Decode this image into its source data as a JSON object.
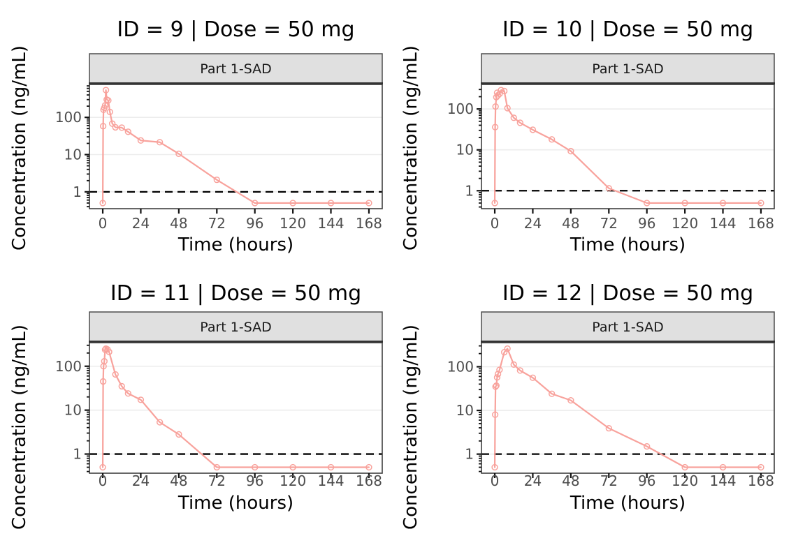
{
  "figure": {
    "x_axis_label": "Time (hours)",
    "y_axis_label": "Concentration (ng/mL)",
    "strip_label": "Part 1-SAD",
    "x_ticks": [
      0,
      24,
      48,
      72,
      96,
      120,
      144,
      168
    ],
    "y_ticks": [
      1,
      10,
      100
    ],
    "lloq": 1,
    "colors": {
      "background": "#ffffff",
      "series": "#f8a29c",
      "lloq_line": "#000000",
      "strip_fill": "#e0e0e0",
      "strip_border": "#4d4d4d",
      "panel_border": "#404040",
      "gridline": "#ececec",
      "tick": "#111111",
      "tick_label": "#4d4d4d",
      "strip_text": "#1a1a1a",
      "title_text": "#000000"
    }
  },
  "chart_data": [
    {
      "type": "line",
      "id": 9,
      "dose_mg": 50,
      "title": "ID = 9 | Dose = 50 mg",
      "strip": "Part 1-SAD",
      "xlabel": "Time (hours)",
      "ylabel": "Concentration (ng/mL)",
      "y_scale": "log10",
      "lloq": 1,
      "x_hours": [
        0,
        0.25,
        0.5,
        1,
        1.5,
        2,
        2.5,
        3.5,
        4.5,
        6,
        8,
        12,
        16,
        24,
        36,
        48,
        72,
        96,
        120,
        144,
        168
      ],
      "y_ng_ml": [
        0.5,
        58,
        160,
        180,
        210,
        540,
        300,
        285,
        140,
        68,
        54,
        53,
        41,
        24,
        21.5,
        10.5,
        2.1,
        0.5,
        0.5,
        0.5,
        0.5
      ]
    },
    {
      "type": "line",
      "id": 10,
      "dose_mg": 50,
      "title": "ID = 10 | Dose = 50 mg",
      "strip": "Part 1-SAD",
      "xlabel": "Time (hours)",
      "ylabel": "Concentration (ng/mL)",
      "y_scale": "log10",
      "lloq": 1,
      "x_hours": [
        0,
        0.25,
        0.5,
        1,
        1.5,
        2,
        3,
        4,
        6,
        8,
        12,
        16,
        24,
        36,
        48,
        72,
        96,
        120,
        144,
        168
      ],
      "y_ng_ml": [
        0.5,
        36,
        115,
        195,
        250,
        215,
        235,
        290,
        275,
        105,
        61,
        46,
        31,
        18,
        9.3,
        1.15,
        0.5,
        0.5,
        0.5,
        0.5
      ]
    },
    {
      "type": "line",
      "id": 11,
      "dose_mg": 50,
      "title": "ID = 11 | Dose = 50 mg",
      "strip": "Part 1-SAD",
      "xlabel": "Time (hours)",
      "ylabel": "Concentration (ng/mL)",
      "y_scale": "log10",
      "lloq": 1,
      "x_hours": [
        0,
        0.25,
        0.5,
        1,
        1.5,
        2,
        3,
        4,
        8,
        12,
        16,
        24,
        36,
        48,
        72,
        96,
        120,
        144,
        168
      ],
      "y_ng_ml": [
        0.5,
        45,
        100,
        130,
        238,
        252,
        242,
        212,
        65,
        35,
        24,
        17.2,
        5.3,
        2.8,
        0.5,
        0.5,
        0.5,
        0.5,
        0.5
      ]
    },
    {
      "type": "line",
      "id": 12,
      "dose_mg": 50,
      "title": "ID = 12 | Dose = 50 mg",
      "strip": "Part 1-SAD",
      "xlabel": "Time (hours)",
      "ylabel": "Concentration (ng/mL)",
      "y_scale": "log10",
      "lloq": 1,
      "x_hours": [
        0,
        0.25,
        0.5,
        1,
        1.5,
        2,
        3,
        6,
        8,
        12,
        16,
        24,
        36,
        48,
        72,
        96,
        120,
        144,
        168
      ],
      "y_ng_ml": [
        0.5,
        8,
        35,
        37,
        57,
        68,
        85,
        215,
        260,
        112,
        82,
        56,
        24,
        17,
        3.9,
        1.5,
        0.5,
        0.5,
        0.5
      ]
    }
  ]
}
